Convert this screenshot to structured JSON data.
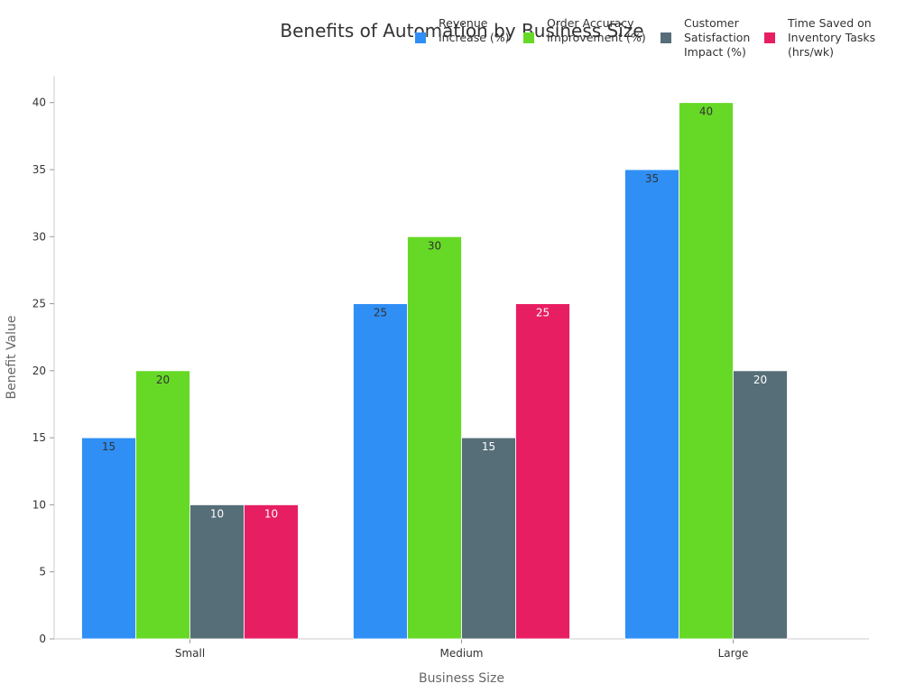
{
  "chart_data": {
    "type": "bar",
    "title": "Benefits of Automation by Business Size",
    "xlabel": "Business Size",
    "ylabel": "Benefit Value",
    "categories": [
      "Small",
      "Medium",
      "Large"
    ],
    "ylim": [
      0,
      42
    ],
    "yticks": [
      0,
      5,
      10,
      15,
      20,
      25,
      30,
      35,
      40
    ],
    "grid": false,
    "legend_position": "top-right",
    "series": [
      {
        "name": "Revenue Increase (%)",
        "color": "#2f8ff5",
        "label_color": "#333333",
        "values": [
          15,
          25,
          35
        ]
      },
      {
        "name": "Order Accuracy Improvement (%)",
        "color": "#66d927",
        "label_color": "#333333",
        "values": [
          20,
          30,
          40
        ]
      },
      {
        "name": "Customer Satisfaction Impact (%)",
        "color": "#566e78",
        "label_color": "#ffffff",
        "values": [
          10,
          15,
          20
        ]
      },
      {
        "name": "Time Saved on Inventory Tasks (hrs/wk)",
        "color": "#e81e63",
        "label_color": "#ffffff",
        "values": [
          10,
          25,
          null
        ]
      }
    ]
  }
}
